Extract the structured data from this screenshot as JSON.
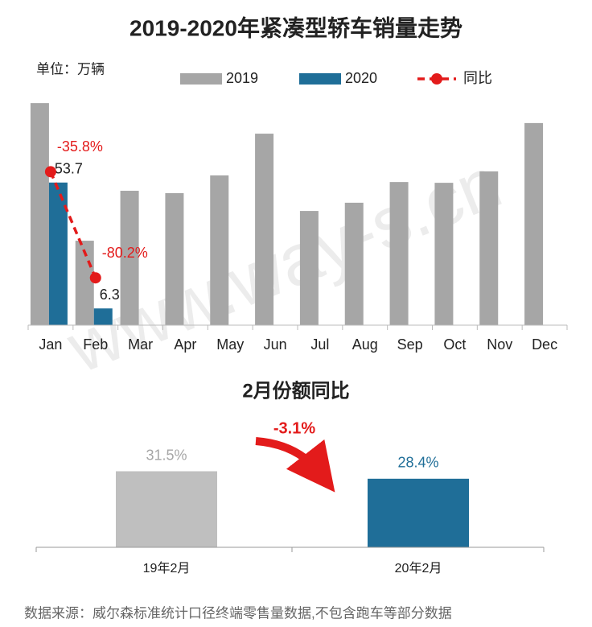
{
  "chart_data": [
    {
      "type": "bar",
      "title": "2019-2020年紧凑型轿车销量走势",
      "unit_label": "单位：万辆",
      "categories": [
        "Jan",
        "Feb",
        "Mar",
        "Apr",
        "May",
        "Jun",
        "Jul",
        "Aug",
        "Sep",
        "Oct",
        "Nov",
        "Dec"
      ],
      "ylim": [
        0,
        90
      ],
      "y2lim": [
        -100,
        0
      ],
      "legend": "top",
      "series": [
        {
          "name": "2019",
          "color": "#a6a6a6",
          "values": [
            83.6,
            31.8,
            50.6,
            49.7,
            56.4,
            72.1,
            43.0,
            46.1,
            53.9,
            53.6,
            57.9,
            76.1
          ]
        },
        {
          "name": "2020",
          "color": "#1f6e98",
          "data_labels": true,
          "values": [
            53.7,
            6.3,
            null,
            null,
            null,
            null,
            null,
            null,
            null,
            null,
            null,
            null
          ]
        },
        {
          "name": "同比",
          "color": "#e31b1b",
          "type": "line",
          "axis": "y2",
          "dashed": true,
          "values": [
            -35.8,
            -80.2,
            null,
            null,
            null,
            null,
            null,
            null,
            null,
            null,
            null,
            null
          ],
          "value_labels": [
            "-35.8%",
            "-80.2%",
            null,
            null,
            null,
            null,
            null,
            null,
            null,
            null,
            null,
            null
          ]
        }
      ]
    },
    {
      "type": "bar",
      "title": "2月份额同比",
      "categories": [
        "19年2月",
        "20年2月"
      ],
      "values": [
        31.5,
        28.4
      ],
      "value_labels": [
        "31.5%",
        "28.4%"
      ],
      "colors": [
        "#bfbfbf",
        "#1f6e98"
      ],
      "label_colors": [
        "#a6a6a6",
        "#1f6e98"
      ],
      "ylim": [
        0,
        40
      ],
      "annotation": "-3.1%"
    }
  ],
  "source": "数据来源：威尔森标准统计口径终端零售量数据,不包含跑车等部分数据",
  "watermark": "www.way-s.cn"
}
